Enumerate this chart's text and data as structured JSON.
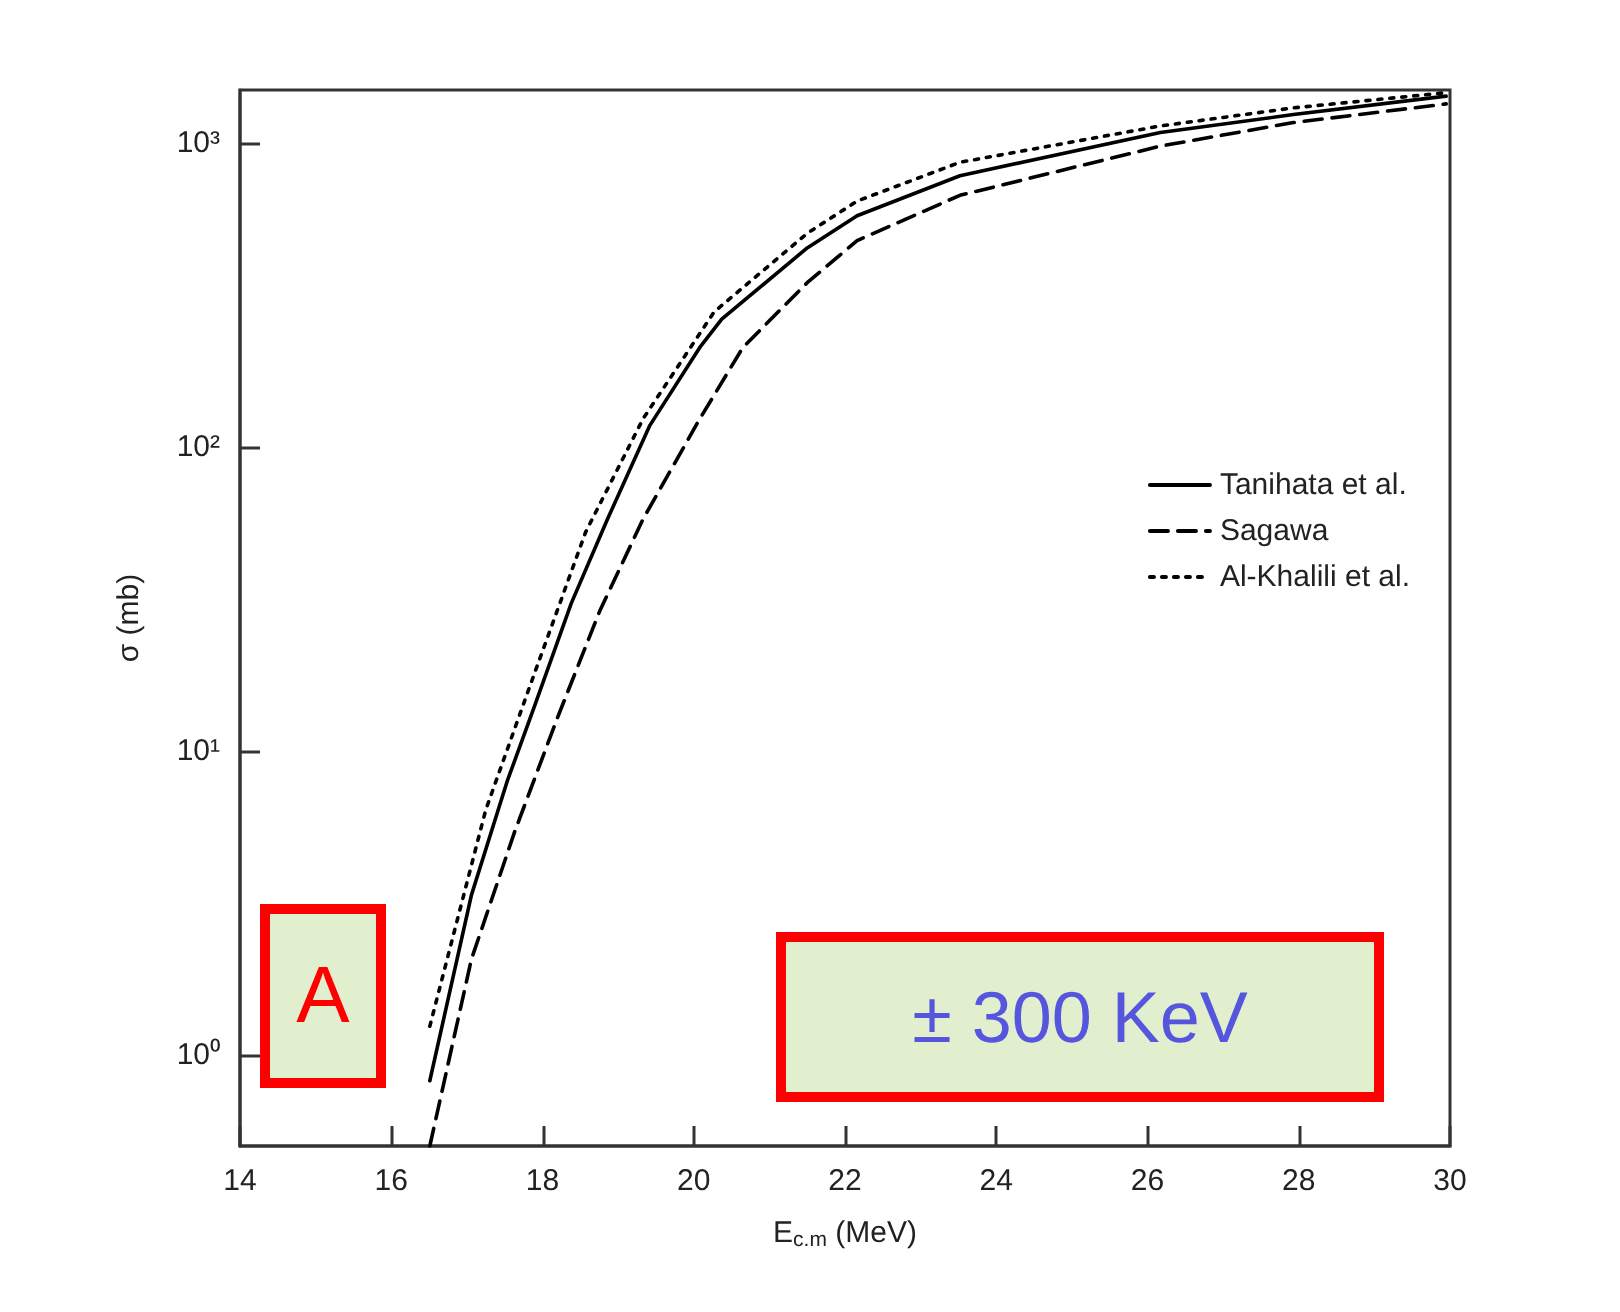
{
  "chart_data": {
    "type": "line",
    "xlabel": "E$_{c.m}$ (MeV)",
    "ylabel": "σ (mb)",
    "log": "y",
    "grid": false,
    "legend": "right",
    "marker": "none",
    "xlim": [
      14,
      30
    ],
    "xticks": [
      14,
      16,
      18,
      20,
      22,
      24,
      26,
      28,
      30
    ],
    "ylim": [
      0.5,
      1500
    ],
    "yticks": [
      {
        "value": 1,
        "label": "10⁰"
      },
      {
        "value": 10,
        "label": "10¹"
      },
      {
        "value": 100,
        "label": "10²"
      },
      {
        "value": 1000,
        "label": "10³"
      }
    ],
    "annotations": [
      "A",
      "± 300 KeV"
    ],
    "series": [
      {
        "name": "Tanihata et al.",
        "color": "#000000",
        "line_style": "solid",
        "x": [
          16.51,
          17.06,
          17.53,
          17.91,
          18.38,
          18.86,
          19.42,
          20.08,
          20.37,
          21.5,
          22.16,
          23.52,
          26.17,
          27.93,
          29.95
        ],
        "values": [
          0.82,
          3.35,
          7.9,
          14.4,
          30.6,
          58,
          118,
          213,
          264,
          453,
          578,
          783,
          1087,
          1245,
          1432
        ]
      },
      {
        "name": "Sagawa",
        "color": "#000000",
        "line_style": "dashed",
        "x": [
          16.51,
          17.06,
          17.63,
          18.2,
          18.76,
          19.33,
          20.08,
          20.65,
          21.5,
          22.16,
          23.52,
          26.17,
          27.93,
          29.95
        ],
        "values": [
          0.5,
          2.06,
          5.4,
          12.9,
          29,
          58,
          124,
          213,
          348,
          479,
          675,
          980,
          1172,
          1350
        ]
      },
      {
        "name": "Al-Khalili et al.",
        "color": "#000000",
        "line_style": "dotted",
        "x": [
          16.51,
          17.25,
          17.82,
          18.57,
          19.33,
          20.27,
          21.5,
          22.16,
          23.52,
          26.17,
          27.93,
          29.95
        ],
        "values": [
          1.24,
          6.4,
          16,
          52.5,
          124,
          279,
          506,
          646,
          867,
          1142,
          1310,
          1470
        ]
      }
    ]
  }
}
